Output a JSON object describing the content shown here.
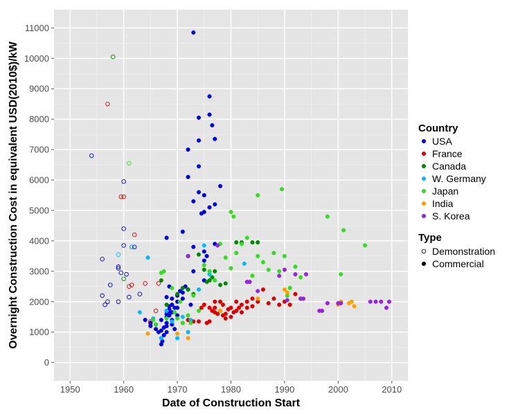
{
  "chart_data": {
    "type": "scatter",
    "title": "",
    "xlabel": "Date of Construction Start",
    "ylabel": "Overnight Construction Cost in equivalent USD(2010$)/kW",
    "xlim": [
      1947,
      2013
    ],
    "ylim": [
      -600,
      11600
    ],
    "x_ticks": [
      1950,
      1960,
      1970,
      1980,
      1990,
      2000,
      2010
    ],
    "y_ticks": [
      0,
      1000,
      2000,
      3000,
      4000,
      5000,
      6000,
      7000,
      8000,
      9000,
      10000,
      11000
    ],
    "grid": true,
    "legend_position": "right",
    "color_legend_title": "Country",
    "shape_legend_title": "Type",
    "countries": [
      {
        "name": "USA",
        "color": "#0000dd"
      },
      {
        "name": "France",
        "color": "#dd0000"
      },
      {
        "name": "Canada",
        "color": "#008800"
      },
      {
        "name": "W. Germany",
        "color": "#00bbff"
      },
      {
        "name": "Japan",
        "color": "#33dd22"
      },
      {
        "name": "India",
        "color": "#ffa000"
      },
      {
        "name": "S. Korea",
        "color": "#9922dd"
      }
    ],
    "types": [
      {
        "name": "Demonstration",
        "filled": false
      },
      {
        "name": "Commercial",
        "filled": true
      }
    ],
    "series": [
      {
        "country": "USA",
        "type": "Demonstration",
        "x": [
          1954,
          1956,
          1956,
          1956.5,
          1957,
          1957.5,
          1959,
          1959,
          1959,
          1959.5,
          1960,
          1960,
          1960,
          1960.5,
          1961,
          1961.5,
          1962,
          1963,
          1965
        ],
        "y": [
          6800,
          3400,
          2200,
          1900,
          2000,
          2550,
          3100,
          3150,
          2000,
          2950,
          5950,
          4400,
          3850,
          2900,
          2150,
          3800,
          3800,
          2250,
          1300
        ]
      },
      {
        "country": "USA",
        "type": "Commercial",
        "x": [
          1964,
          1965,
          1965,
          1966,
          1966,
          1966.5,
          1967,
          1967,
          1967,
          1967,
          1967.2,
          1967.5,
          1967.5,
          1968,
          1968,
          1968,
          1968,
          1968,
          1968,
          1968.3,
          1968.5,
          1968.5,
          1968.5,
          1969,
          1969,
          1969,
          1969,
          1969,
          1969.5,
          1970,
          1970,
          1970,
          1970,
          1971,
          1971,
          1971,
          1972,
          1972,
          1972,
          1972,
          1973,
          1973,
          1973,
          1973,
          1974,
          1974,
          1974,
          1974,
          1974.5,
          1975,
          1975,
          1975,
          1975,
          1975.5,
          1976,
          1976,
          1976,
          1976.5,
          1977,
          1977,
          1977,
          1978,
          1968,
          1968,
          1968.5,
          1969.5,
          1970.5,
          1971.5,
          1972.5,
          1975
        ],
        "y": [
          1400,
          1300,
          1200,
          1100,
          1250,
          1000,
          600,
          800,
          1050,
          1400,
          700,
          900,
          1150,
          1300,
          1500,
          1600,
          1700,
          1200,
          1000,
          1650,
          1850,
          1550,
          1750,
          1400,
          1650,
          1900,
          2100,
          1250,
          1800,
          2200,
          1800,
          1550,
          2000,
          2100,
          2300,
          4300,
          2400,
          3500,
          6100,
          7000,
          10850,
          5300,
          3800,
          3000,
          5600,
          6450,
          7300,
          8050,
          4900,
          3650,
          4950,
          5500,
          3350,
          3500,
          8750,
          8150,
          5100,
          7800,
          3900,
          5200,
          7350,
          5800,
          4100,
          2150,
          2500,
          1100,
          2350,
          2500,
          1900,
          2700
        ]
      },
      {
        "country": "France",
        "type": "Demonstration",
        "x": [
          1957,
          1959.5,
          1960,
          1961,
          1961.5,
          1962,
          1964,
          1965,
          1966,
          1966.5
        ],
        "y": [
          8500,
          5450,
          5450,
          2500,
          2550,
          4200,
          2600,
          1350,
          1700,
          2600
        ]
      },
      {
        "country": "France",
        "type": "Commercial",
        "x": [
          1971,
          1972,
          1973,
          1974,
          1974.5,
          1975,
          1975.5,
          1976,
          1976.5,
          1977,
          1977,
          1977.5,
          1978,
          1978,
          1978.5,
          1979,
          1979,
          1979.5,
          1980,
          1980,
          1980.5,
          1981,
          1981,
          1981.5,
          1982,
          1982,
          1983,
          1983,
          1984,
          1984,
          1985,
          1986,
          1987,
          1988,
          1989,
          1990,
          1991,
          1992,
          1993,
          1976,
          1977,
          1978.5,
          1979.5
        ],
        "y": [
          1300,
          1400,
          1350,
          1350,
          1800,
          1900,
          1300,
          1350,
          1700,
          2000,
          1800,
          1600,
          2000,
          1700,
          1900,
          1600,
          1450,
          1750,
          1800,
          1500,
          1650,
          1700,
          2000,
          1800,
          1650,
          1900,
          2000,
          1800,
          2100,
          1850,
          2000,
          2400,
          1950,
          2100,
          1900,
          2000,
          1900,
          2250,
          2100,
          1800,
          1650,
          1550,
          1750
        ]
      },
      {
        "country": "Canada",
        "type": "Demonstration",
        "x": [
          1958,
          1960
        ],
        "y": [
          10050,
          2750
        ]
      },
      {
        "country": "Canada",
        "type": "Commercial",
        "x": [
          1967,
          1968,
          1970,
          1971,
          1972,
          1973,
          1974,
          1975,
          1975.5,
          1976,
          1976.5,
          1977,
          1978,
          1979,
          1981,
          1982,
          1984,
          1985
        ],
        "y": [
          2700,
          1900,
          2250,
          2450,
          2400,
          2250,
          3550,
          3050,
          2650,
          2700,
          2800,
          3000,
          2550,
          2600,
          3950,
          3950,
          3950,
          3950
        ]
      },
      {
        "country": "W. Germany",
        "type": "Demonstration",
        "x": [
          1959,
          1961.5
        ],
        "y": [
          3550,
          3800
        ]
      },
      {
        "country": "W. Germany",
        "type": "Commercial",
        "x": [
          1963,
          1964.5,
          1965.5,
          1967,
          1968,
          1969,
          1970,
          1971,
          1972,
          1972.5,
          1974,
          1975,
          1976,
          1982.5
        ],
        "y": [
          1650,
          3450,
          1450,
          800,
          1700,
          1350,
          800,
          1500,
          1000,
          1400,
          2400,
          3850,
          2900,
          3250
        ]
      },
      {
        "country": "Japan",
        "type": "Demonstration",
        "x": [
          1961
        ],
        "y": [
          6550
        ]
      },
      {
        "country": "Japan",
        "type": "Commercial",
        "x": [
          1965.5,
          1966,
          1967,
          1967.5,
          1968,
          1969,
          1969.5,
          1970,
          1970.5,
          1971,
          1972,
          1972.5,
          1973,
          1974,
          1975,
          1976,
          1977,
          1978,
          1979,
          1980,
          1980.5,
          1981,
          1982,
          1983,
          1984,
          1985,
          1986,
          1987,
          1988,
          1989,
          1989.5,
          1990,
          1990.5,
          1991,
          1992,
          1993,
          1998,
          2000.5,
          2001,
          2005,
          1985,
          1980
        ],
        "y": [
          1400,
          1250,
          2950,
          3000,
          1450,
          2450,
          1650,
          1450,
          2000,
          1300,
          1550,
          1300,
          2200,
          1700,
          3200,
          3000,
          2700,
          3900,
          3450,
          4950,
          4800,
          3600,
          3900,
          4100,
          2850,
          3500,
          3300,
          3050,
          3600,
          3000,
          5700,
          3500,
          2200,
          2450,
          3150,
          2800,
          4800,
          2900,
          4350,
          3850,
          5500,
          3100
        ]
      },
      {
        "country": "India",
        "type": "Commercial",
        "x": [
          1964.5,
          1970,
          1972,
          1978,
          1985,
          1990,
          1990.5,
          2000,
          2000.5,
          2002,
          2002.5,
          2003
        ],
        "y": [
          950,
          950,
          800,
          1700,
          2100,
          2400,
          2300,
          1900,
          2000,
          1950,
          2000,
          1850
        ]
      },
      {
        "country": "S. Korea",
        "type": "Commercial",
        "x": [
          1972,
          1977.5,
          1983,
          1983.5,
          1985,
          1989,
          1990,
          1990.5,
          1992,
          1993,
          1993.5,
          1994,
          1996.5,
          1997,
          1998,
          2000,
          2000.5,
          2006,
          2007,
          2008,
          2009,
          2009.5
        ],
        "y": [
          3500,
          3850,
          2650,
          2650,
          2350,
          2850,
          3050,
          2050,
          2900,
          2100,
          2100,
          2900,
          1700,
          1700,
          1950,
          1950,
          1950,
          2000,
          2000,
          2000,
          1800,
          2000
        ]
      }
    ]
  }
}
